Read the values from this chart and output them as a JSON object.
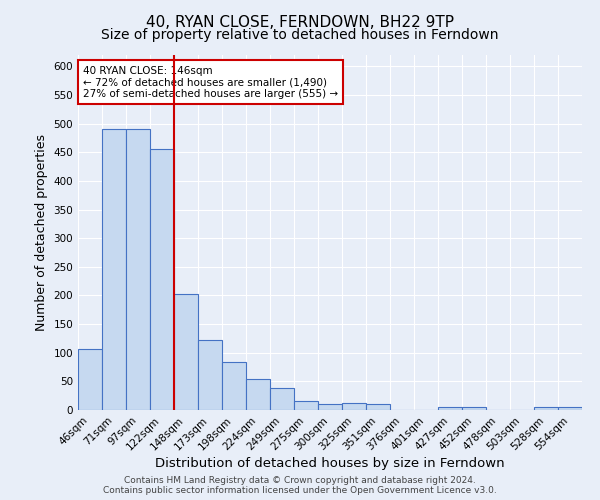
{
  "title": "40, RYAN CLOSE, FERNDOWN, BH22 9TP",
  "subtitle": "Size of property relative to detached houses in Ferndown",
  "xlabel": "Distribution of detached houses by size in Ferndown",
  "ylabel": "Number of detached properties",
  "categories": [
    "46sqm",
    "71sqm",
    "97sqm",
    "122sqm",
    "148sqm",
    "173sqm",
    "198sqm",
    "224sqm",
    "249sqm",
    "275sqm",
    "300sqm",
    "325sqm",
    "351sqm",
    "376sqm",
    "401sqm",
    "427sqm",
    "452sqm",
    "478sqm",
    "503sqm",
    "528sqm",
    "554sqm"
  ],
  "values": [
    107,
    490,
    490,
    456,
    202,
    122,
    84,
    55,
    38,
    16,
    10,
    12,
    10,
    0,
    0,
    5,
    5,
    0,
    0,
    6,
    6
  ],
  "bar_color": "#c6d9f0",
  "bar_edge_color": "#4472c4",
  "vline_index": 4,
  "vline_color": "#cc0000",
  "annotation_text": "40 RYAN CLOSE: 146sqm\n← 72% of detached houses are smaller (1,490)\n27% of semi-detached houses are larger (555) →",
  "annotation_box_color": "white",
  "annotation_box_edge_color": "#cc0000",
  "footer_text": "Contains HM Land Registry data © Crown copyright and database right 2024.\nContains public sector information licensed under the Open Government Licence v3.0.",
  "ylim": [
    0,
    620
  ],
  "yticks": [
    0,
    50,
    100,
    150,
    200,
    250,
    300,
    350,
    400,
    450,
    500,
    550,
    600
  ],
  "background_color": "#e8eef8",
  "grid_color": "#ffffff",
  "title_fontsize": 11,
  "subtitle_fontsize": 10,
  "xlabel_fontsize": 9.5,
  "ylabel_fontsize": 9,
  "tick_fontsize": 7.5,
  "footer_fontsize": 6.5
}
